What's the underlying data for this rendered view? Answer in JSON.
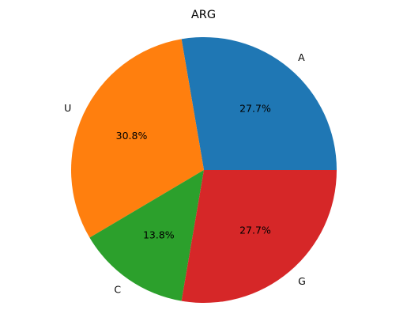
{
  "chart_data": {
    "type": "pie",
    "title": "ARG",
    "start_angle_deg": 0,
    "direction": "counterclockwise",
    "slices": [
      {
        "label": "A",
        "value": 27.7,
        "pct_label": "27.7%",
        "color": "#1f77b4"
      },
      {
        "label": "U",
        "value": 30.8,
        "pct_label": "30.8%",
        "color": "#ff7f0e"
      },
      {
        "label": "C",
        "value": 13.8,
        "pct_label": "13.8%",
        "color": "#2ca02c"
      },
      {
        "label": "G",
        "value": 27.7,
        "pct_label": "27.7%",
        "color": "#d62728"
      }
    ]
  }
}
